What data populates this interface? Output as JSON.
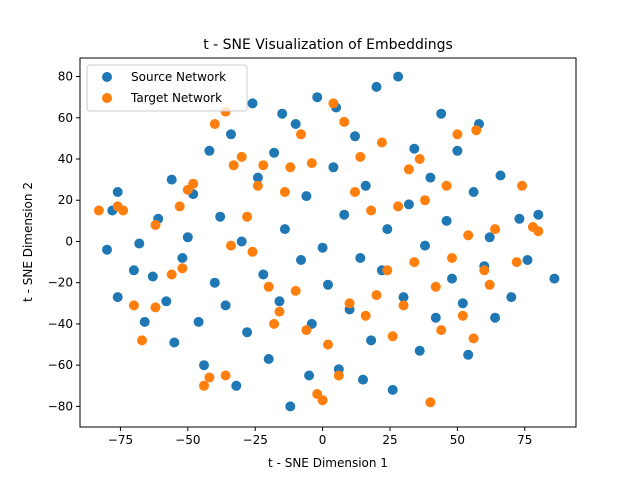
{
  "chart_data": {
    "type": "scatter",
    "title": "t - SNE Visualization of Embeddings",
    "xlabel": "t - SNE Dimension 1",
    "ylabel": "t - SNE Dimension 2",
    "xlim": [
      -90,
      94
    ],
    "ylim": [
      -90,
      89
    ],
    "xticks": [
      -75,
      -50,
      -25,
      0,
      25,
      50,
      75
    ],
    "yticks": [
      -80,
      -60,
      -40,
      -20,
      0,
      20,
      40,
      60,
      80
    ],
    "grid": false,
    "legend_position": "top-left",
    "series": [
      {
        "name": "Source Network",
        "color": "#1f77b4",
        "points": [
          [
            -78,
            15
          ],
          [
            -80,
            -4
          ],
          [
            -76,
            24
          ],
          [
            -76,
            -27
          ],
          [
            -70,
            -14
          ],
          [
            -68,
            -1
          ],
          [
            -66,
            -39
          ],
          [
            -63,
            -17
          ],
          [
            -61,
            11
          ],
          [
            -58,
            -29
          ],
          [
            -56,
            30
          ],
          [
            -55,
            -49
          ],
          [
            -52,
            -8
          ],
          [
            -50,
            2
          ],
          [
            -48,
            23
          ],
          [
            -46,
            -39
          ],
          [
            -44,
            -60
          ],
          [
            -42,
            44
          ],
          [
            -40,
            -20
          ],
          [
            -38,
            12
          ],
          [
            -36,
            -31
          ],
          [
            -34,
            52
          ],
          [
            -32,
            -70
          ],
          [
            -30,
            0
          ],
          [
            -28,
            -44
          ],
          [
            -26,
            67
          ],
          [
            -24,
            31
          ],
          [
            -22,
            -16
          ],
          [
            -20,
            -57
          ],
          [
            -18,
            43
          ],
          [
            -16,
            -29
          ],
          [
            -14,
            6
          ],
          [
            -12,
            -80
          ],
          [
            -10,
            57
          ],
          [
            -8,
            -9
          ],
          [
            -6,
            22
          ],
          [
            -4,
            -40
          ],
          [
            -2,
            70
          ],
          [
            0,
            -3
          ],
          [
            2,
            -21
          ],
          [
            4,
            36
          ],
          [
            6,
            -62
          ],
          [
            8,
            13
          ],
          [
            10,
            -33
          ],
          [
            12,
            51
          ],
          [
            14,
            -8
          ],
          [
            16,
            27
          ],
          [
            18,
            -48
          ],
          [
            20,
            75
          ],
          [
            22,
            -14
          ],
          [
            24,
            6
          ],
          [
            26,
            -72
          ],
          [
            28,
            80
          ],
          [
            30,
            -27
          ],
          [
            32,
            18
          ],
          [
            34,
            45
          ],
          [
            36,
            -53
          ],
          [
            38,
            -2
          ],
          [
            40,
            31
          ],
          [
            42,
            -37
          ],
          [
            44,
            62
          ],
          [
            46,
            10
          ],
          [
            48,
            -18
          ],
          [
            50,
            44
          ],
          [
            52,
            -30
          ],
          [
            54,
            -55
          ],
          [
            56,
            24
          ],
          [
            58,
            57
          ],
          [
            60,
            -12
          ],
          [
            62,
            2
          ],
          [
            64,
            -37
          ],
          [
            66,
            32
          ],
          [
            70,
            -27
          ],
          [
            73,
            11
          ],
          [
            76,
            -9
          ],
          [
            80,
            13
          ],
          [
            86,
            -18
          ],
          [
            -5,
            -65
          ],
          [
            5,
            65
          ],
          [
            15,
            -67
          ],
          [
            -15,
            62
          ]
        ]
      },
      {
        "name": "Target Network",
        "color": "#ff7f0e",
        "points": [
          [
            -83,
            15
          ],
          [
            -76,
            17
          ],
          [
            -74,
            15
          ],
          [
            -70,
            -31
          ],
          [
            -67,
            -48
          ],
          [
            -62,
            -32
          ],
          [
            -62,
            8
          ],
          [
            -56,
            -16
          ],
          [
            -53,
            17
          ],
          [
            -52,
            -13
          ],
          [
            -50,
            25
          ],
          [
            -48,
            28
          ],
          [
            -44,
            -70
          ],
          [
            -42,
            -66
          ],
          [
            -40,
            57
          ],
          [
            -36,
            -65
          ],
          [
            -36,
            63
          ],
          [
            -34,
            -2
          ],
          [
            -33,
            37
          ],
          [
            -30,
            41
          ],
          [
            -28,
            12
          ],
          [
            -26,
            -5
          ],
          [
            -24,
            27
          ],
          [
            -22,
            37
          ],
          [
            -20,
            -22
          ],
          [
            -18,
            -40
          ],
          [
            -16,
            -34
          ],
          [
            -14,
            24
          ],
          [
            -12,
            36
          ],
          [
            -10,
            -24
          ],
          [
            -8,
            52
          ],
          [
            -6,
            -43
          ],
          [
            -4,
            38
          ],
          [
            -2,
            -74
          ],
          [
            0,
            -77
          ],
          [
            2,
            -50
          ],
          [
            4,
            67
          ],
          [
            6,
            -65
          ],
          [
            8,
            58
          ],
          [
            10,
            -30
          ],
          [
            12,
            24
          ],
          [
            14,
            41
          ],
          [
            16,
            -36
          ],
          [
            18,
            15
          ],
          [
            20,
            -26
          ],
          [
            22,
            48
          ],
          [
            24,
            -14
          ],
          [
            26,
            -46
          ],
          [
            28,
            17
          ],
          [
            30,
            -31
          ],
          [
            32,
            35
          ],
          [
            34,
            -10
          ],
          [
            36,
            40
          ],
          [
            38,
            20
          ],
          [
            40,
            -78
          ],
          [
            42,
            -22
          ],
          [
            44,
            -43
          ],
          [
            46,
            27
          ],
          [
            48,
            -8
          ],
          [
            50,
            52
          ],
          [
            52,
            -36
          ],
          [
            54,
            3
          ],
          [
            56,
            -47
          ],
          [
            57,
            54
          ],
          [
            60,
            -14
          ],
          [
            62,
            -21
          ],
          [
            64,
            6
          ],
          [
            72,
            -10
          ],
          [
            74,
            27
          ],
          [
            78,
            7
          ],
          [
            80,
            5
          ]
        ]
      }
    ]
  }
}
